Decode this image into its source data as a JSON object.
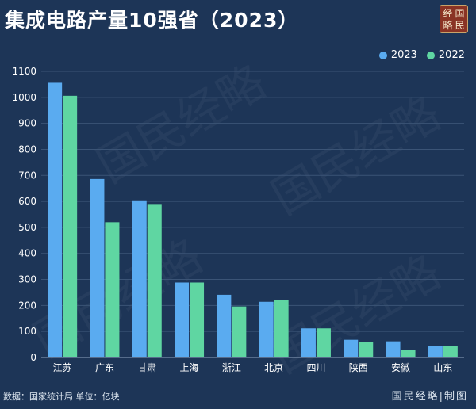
{
  "title": "集成电路产量10强省（2023）",
  "seal": [
    "经",
    "国",
    "略",
    "民"
  ],
  "watermark": "国民经略",
  "colors": {
    "s2023": "#5aabf0",
    "s2022": "#5fd6a2",
    "background": "#1d3557",
    "grid": "#3b5476"
  },
  "footer": {
    "source": "数据：国家统计局 单位：亿块",
    "brand": "国民经略|制图"
  },
  "chart_data": {
    "type": "bar",
    "categories": [
      "江苏",
      "广东",
      "甘肃",
      "上海",
      "浙江",
      "北京",
      "四川",
      "陕西",
      "安徽",
      "山东"
    ],
    "series": [
      {
        "name": "2023",
        "values": [
          1056,
          686,
          604,
          288,
          241,
          214,
          112,
          68,
          62,
          43
        ]
      },
      {
        "name": "2022",
        "values": [
          1006,
          520,
          590,
          288,
          196,
          220,
          112,
          60,
          28,
          43
        ]
      }
    ],
    "yticks": [
      0,
      100,
      200,
      300,
      400,
      500,
      600,
      700,
      800,
      900,
      1000,
      1100
    ],
    "ylim": [
      0,
      1100
    ],
    "grid": true,
    "legend_position": "top-right"
  }
}
